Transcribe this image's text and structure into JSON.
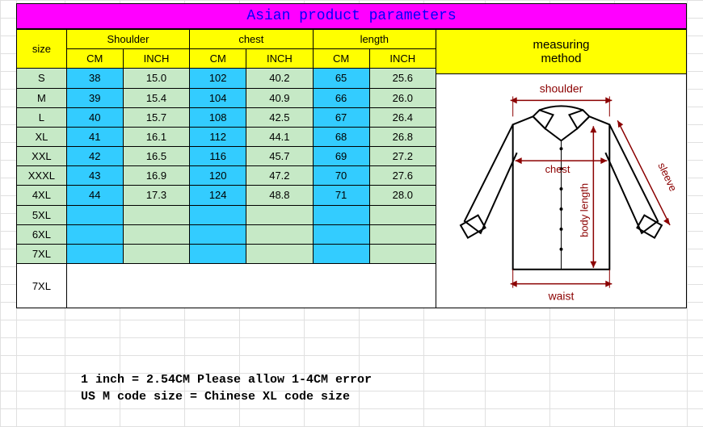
{
  "title": "Asian product parameters",
  "columns": {
    "size": "size",
    "shoulder": "Shoulder",
    "chest": "chest",
    "length": "length",
    "cm": "CM",
    "inch": "INCH"
  },
  "right_header_line1": "measuring",
  "right_header_line2": "method",
  "rows": [
    {
      "size": "S",
      "sh_cm": "38",
      "sh_in": "15.0",
      "ch_cm": "102",
      "ch_in": "40.2",
      "le_cm": "65",
      "le_in": "25.6"
    },
    {
      "size": "M",
      "sh_cm": "39",
      "sh_in": "15.4",
      "ch_cm": "104",
      "ch_in": "40.9",
      "le_cm": "66",
      "le_in": "26.0"
    },
    {
      "size": "L",
      "sh_cm": "40",
      "sh_in": "15.7",
      "ch_cm": "108",
      "ch_in": "42.5",
      "le_cm": "67",
      "le_in": "26.4"
    },
    {
      "size": "XL",
      "sh_cm": "41",
      "sh_in": "16.1",
      "ch_cm": "112",
      "ch_in": "44.1",
      "le_cm": "68",
      "le_in": "26.8"
    },
    {
      "size": "XXL",
      "sh_cm": "42",
      "sh_in": "16.5",
      "ch_cm": "116",
      "ch_in": "45.7",
      "le_cm": "69",
      "le_in": "27.2"
    },
    {
      "size": "XXXL",
      "sh_cm": "43",
      "sh_in": "16.9",
      "ch_cm": "120",
      "ch_in": "47.2",
      "le_cm": "70",
      "le_in": "27.6"
    },
    {
      "size": "4XL",
      "sh_cm": "44",
      "sh_in": "17.3",
      "ch_cm": "124",
      "ch_in": "48.8",
      "le_cm": "71",
      "le_in": "28.0"
    },
    {
      "size": "5XL",
      "sh_cm": "",
      "sh_in": "",
      "ch_cm": "",
      "ch_in": "",
      "le_cm": "",
      "le_in": ""
    },
    {
      "size": "6XL",
      "sh_cm": "",
      "sh_in": "",
      "ch_cm": "",
      "ch_in": "",
      "le_cm": "",
      "le_in": ""
    },
    {
      "size": "7XL",
      "sh_cm": "",
      "sh_in": "",
      "ch_cm": "",
      "ch_in": "",
      "le_cm": "",
      "le_in": ""
    }
  ],
  "bottom_label": "7XL",
  "footer_line1": "1 inch = 2.54CM Please allow 1-4CM error",
  "footer_line2": "US M code size = Chinese XL code size",
  "diagram_labels": {
    "shoulder": "shoulder",
    "sleeve": "sleeve",
    "chest": "chest",
    "body_length": "body length",
    "waist": "waist"
  },
  "colors": {
    "title_bg": "#ff00ff",
    "title_text": "#0000ff",
    "header_bg": "#ffff00",
    "green": "#c6e9c6",
    "blue": "#33ccff",
    "border": "#000000",
    "diagram_stroke": "#000000",
    "diagram_arrow": "#8b0000",
    "diagram_text": "#8b0000"
  }
}
